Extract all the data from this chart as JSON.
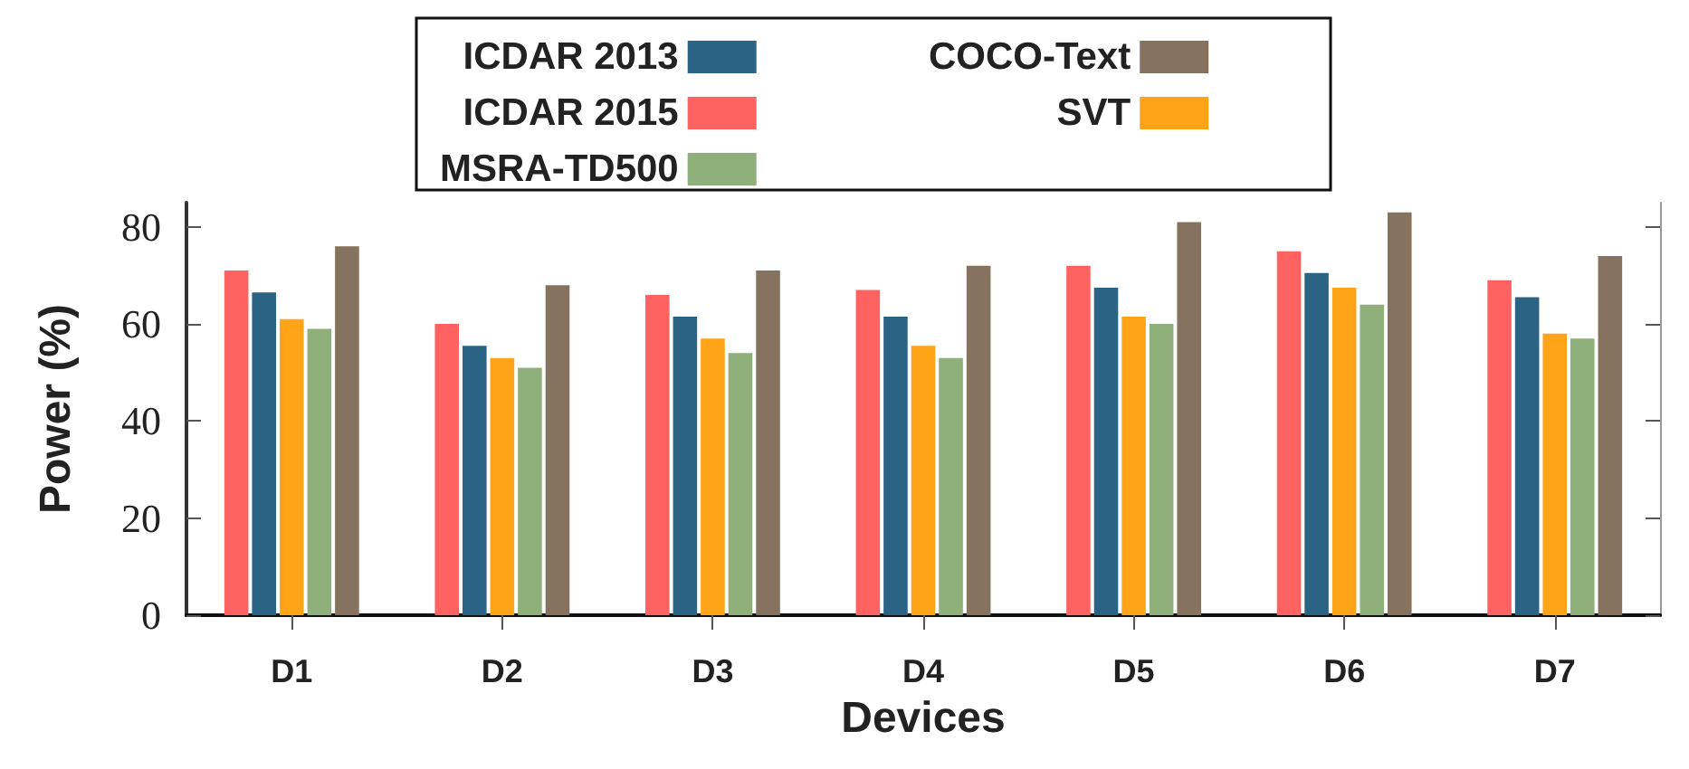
{
  "chart_data": {
    "type": "bar",
    "xlabel": "Devices",
    "ylabel": "Power (%)",
    "categories": [
      "D1",
      "D2",
      "D3",
      "D4",
      "D5",
      "D6",
      "D7"
    ],
    "series": [
      {
        "name": "ICDAR 2015",
        "color": "#ff6361",
        "values": [
          71,
          60,
          66,
          67,
          72,
          75,
          69
        ]
      },
      {
        "name": "ICDAR 2013",
        "color": "#2a6384",
        "values": [
          66.5,
          55.5,
          61.5,
          61.5,
          67.5,
          70.5,
          65.5
        ]
      },
      {
        "name": "SVT",
        "color": "#ffa319",
        "values": [
          61,
          53,
          57,
          55.5,
          61.5,
          67.5,
          58
        ]
      },
      {
        "name": "MSRA-TD500",
        "color": "#8fb07a",
        "values": [
          59,
          51,
          54,
          53,
          60,
          64,
          57
        ]
      },
      {
        "name": "COCO-Text",
        "color": "#85735f",
        "values": [
          76,
          68,
          71,
          72,
          81,
          83,
          74
        ]
      }
    ],
    "ylim": [
      0,
      85
    ],
    "yticks": [
      0,
      20,
      40,
      60,
      80
    ],
    "grid": false,
    "legend": "top"
  }
}
